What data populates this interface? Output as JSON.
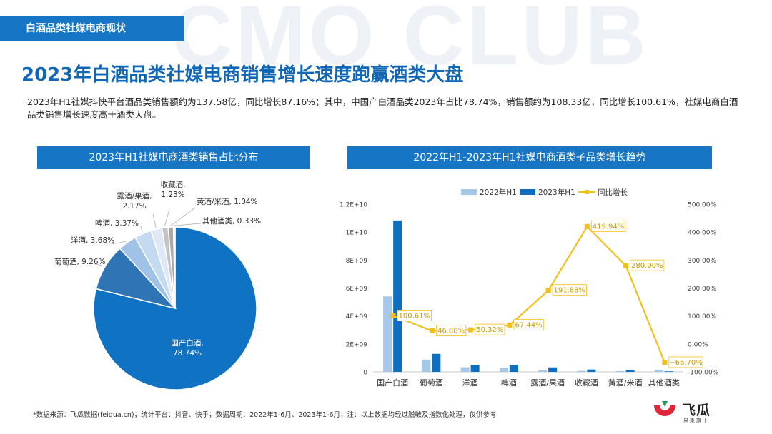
{
  "watermark": "CMO CLUB",
  "section_tag": "白酒品类社媒电商现状",
  "title": "2023年白酒品类社媒电商销售增长速度跑赢酒类大盘",
  "intro": "2023年H1社媒抖快平台酒品类销售额约为137.58亿，同比增长87.16%；其中，中国产白酒品类2023年占比78.74%，销售额约为108.33亿，同比增长100.61%，社媒电商白酒品类销售增长速度高于酒类大盘。",
  "pie_title": "2023年H1社媒电商酒类销售占比分布",
  "combo_title": "2022年H1-2023年H1社媒电商酒类子品类增长趋势",
  "footer_note": "*数据来源：飞瓜数据(feigua.cn)；统计平台：抖音、快手；数据周期：2022年1-6月、2023年1-6月；注：以上数据均经过脱敏及指数化处理，仅供参考",
  "brand": {
    "name": "飞瓜",
    "sub": "果集旗下"
  },
  "colors": {
    "brand_blue": "#1675c4",
    "bar_2022": "#a6c8e8",
    "bar_2023": "#0e6fc1",
    "line_yoy": "#f2c01a",
    "pie": [
      "#0f72c2",
      "#2f74b5",
      "#9fc2e6",
      "#c4daf0",
      "#dfe9f5",
      "#c3c3c3",
      "#a9a9a9",
      "#dedede"
    ]
  },
  "chart_data": [
    {
      "type": "pie",
      "title": "2023年H1社媒电商酒类销售占比分布",
      "slices": [
        {
          "label": "国产白酒",
          "value": 78.74,
          "text": "国产白酒,",
          "pct_text": "78.74%"
        },
        {
          "label": "葡萄酒",
          "value": 9.26,
          "text": "葡萄酒, 9.26%"
        },
        {
          "label": "洋酒",
          "value": 3.68,
          "text": "洋酒, 3.68%"
        },
        {
          "label": "啤酒",
          "value": 3.37,
          "text": "啤酒, 3.37%"
        },
        {
          "label": "露酒/果酒",
          "value": 2.17,
          "text": "露酒/果酒,",
          "pct_text": "2.17%"
        },
        {
          "label": "收藏酒",
          "value": 1.23,
          "text": "收藏酒,",
          "pct_text": "1.23%"
        },
        {
          "label": "黄酒/米酒",
          "value": 1.04,
          "text": "黄酒/米酒, 1.04%"
        },
        {
          "label": "其他酒类",
          "value": 0.33,
          "text": "其他酒类, 0.33%"
        }
      ]
    },
    {
      "type": "bar",
      "title": "2022年H1-2023年H1社媒电商酒类子品类增长趋势",
      "categories": [
        "国产白酒",
        "葡萄酒",
        "洋酒",
        "啤酒",
        "露酒/果酒",
        "收藏酒",
        "黄酒/米酒",
        "其他酒类"
      ],
      "series": [
        {
          "name": "2022年H1",
          "kind": "bar",
          "axis": "left",
          "values": [
            5400000000,
            880000000,
            330000000,
            290000000,
            110000000,
            70000000,
            60000000,
            150000000
          ]
        },
        {
          "name": "2023年H1",
          "kind": "bar",
          "axis": "left",
          "values": [
            10833000000,
            1290000000,
            500000000,
            480000000,
            320000000,
            170000000,
            140000000,
            40000000
          ]
        },
        {
          "name": "同比增长",
          "kind": "line",
          "axis": "right",
          "values": [
            100.61,
            46.88,
            50.32,
            67.44,
            191.88,
            419.94,
            280.0,
            -66.7
          ],
          "labels": [
            "100.61%",
            "46.88%",
            "50.32%",
            "67.44%",
            "191.88%",
            "419.94%",
            "280.00%",
            "−66.70%"
          ]
        }
      ],
      "ylim_left": [
        0,
        12000000000
      ],
      "yticks_left": [
        "0",
        "2E+09",
        "4E+09",
        "6E+09",
        "8E+09",
        "1E+10",
        "1.2E+10"
      ],
      "ylim_right": [
        -100,
        500
      ],
      "yticks_right": [
        "-100.00%",
        "0.00%",
        "100.00%",
        "200.00%",
        "300.00%",
        "400.00%",
        "500.00%"
      ],
      "legend": "top",
      "grid": false
    }
  ]
}
